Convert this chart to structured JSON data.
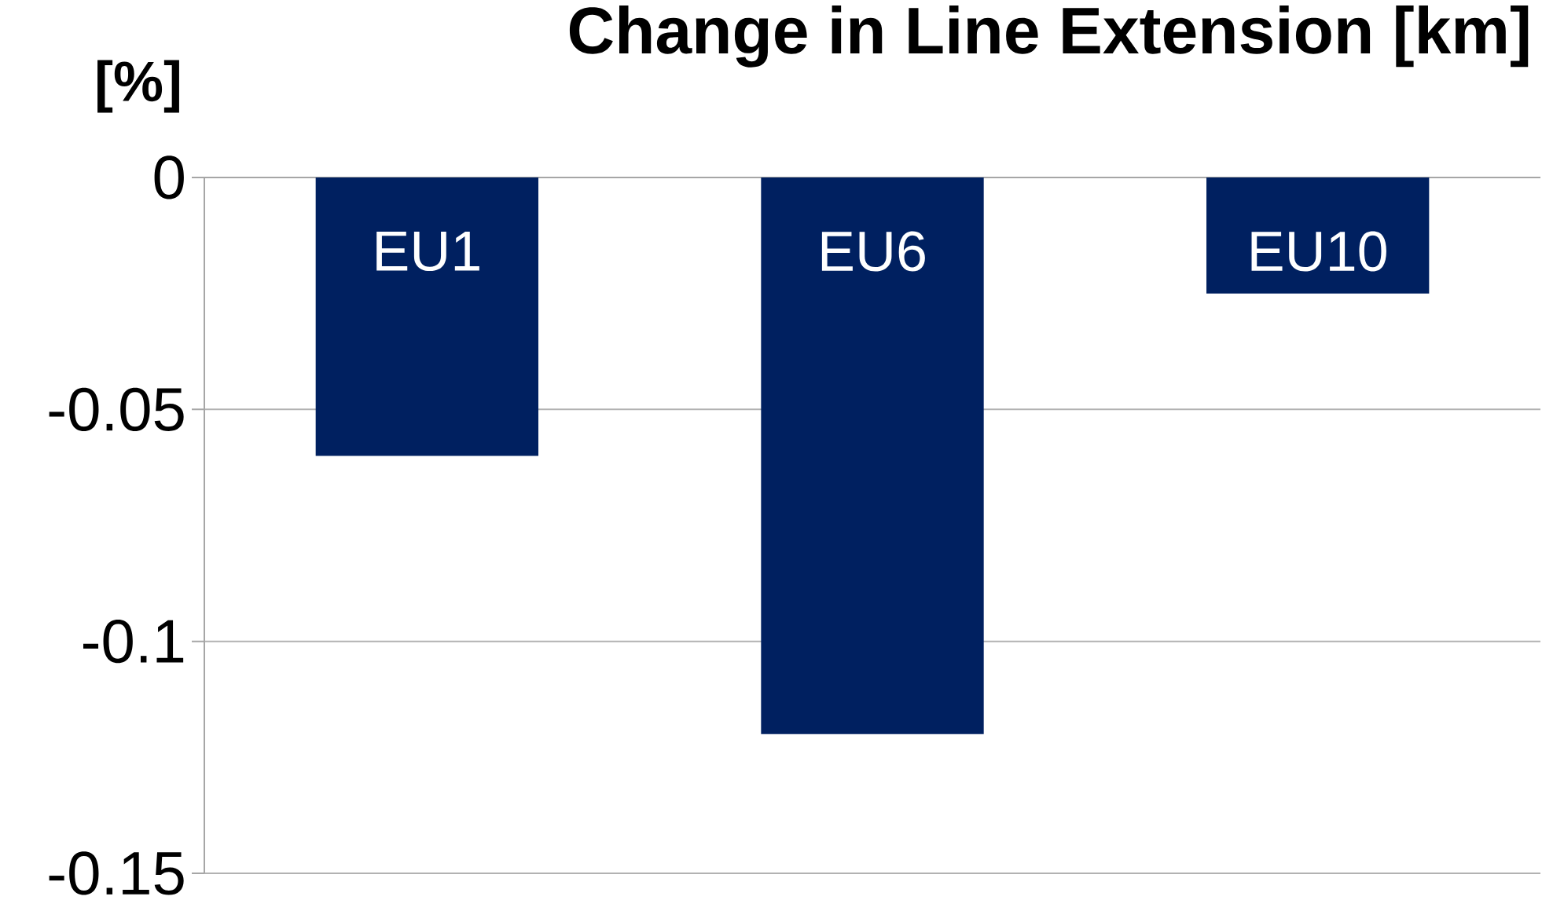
{
  "chart_data": {
    "type": "bar",
    "title": "Change in  Line Extension [km]",
    "ylabel": "[%]",
    "categories": [
      "EU1",
      "EU6",
      "EU10"
    ],
    "values": [
      -0.06,
      -0.12,
      -0.025
    ],
    "color": "#002060",
    "ylim": [
      -0.15,
      0
    ],
    "yticks": [
      0,
      -0.05,
      -0.1,
      -0.15
    ],
    "grid": "y"
  }
}
